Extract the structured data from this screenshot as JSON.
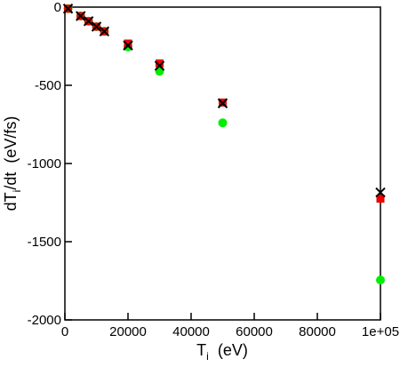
{
  "chart_data": {
    "type": "scatter",
    "x_label": {
      "main": "T",
      "sub": "i",
      "unit": "(eV)"
    },
    "y_label": {
      "main": "dT",
      "sub": "i",
      "unit": "/dt  (eV/fs)"
    },
    "xlim": [
      0,
      100000
    ],
    "ylim": [
      -2000,
      0
    ],
    "xticks": [
      0,
      20000,
      40000,
      60000,
      80000,
      {
        "value": 100000,
        "label": "1e+05"
      }
    ],
    "yticks": [
      0,
      -500,
      -1000,
      -1500,
      -2000
    ],
    "series": [
      {
        "marker": "circle",
        "color": "#00ee00",
        "x": [
          1000,
          5000,
          7500,
          10000,
          12500,
          20000,
          30000,
          50000,
          100000
        ],
        "values": [
          -10,
          -57,
          -90,
          -125,
          -155,
          -255,
          -410,
          -740,
          -1745
        ]
      },
      {
        "marker": "square",
        "color": "#ee0000",
        "x": [
          1000,
          5000,
          7500,
          10000,
          12500,
          20000,
          30000,
          50000,
          100000
        ],
        "values": [
          -10,
          -57,
          -90,
          -125,
          -155,
          -233,
          -360,
          -610,
          -1225
        ]
      },
      {
        "marker": "x",
        "color": "#000000",
        "x": [
          1000,
          5000,
          7500,
          10000,
          12500,
          20000,
          30000,
          50000,
          100000
        ],
        "values": [
          -10,
          -57,
          -90,
          -125,
          -155,
          -245,
          -375,
          -615,
          -1185
        ]
      }
    ]
  }
}
